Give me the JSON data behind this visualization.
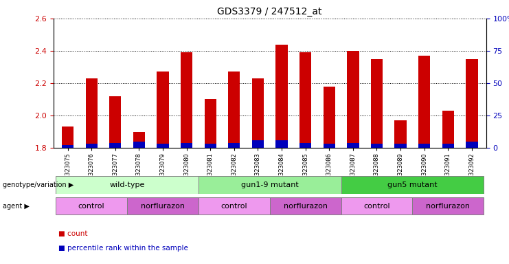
{
  "title": "GDS3379 / 247512_at",
  "samples": [
    "GSM323075",
    "GSM323076",
    "GSM323077",
    "GSM323078",
    "GSM323079",
    "GSM323080",
    "GSM323081",
    "GSM323082",
    "GSM323083",
    "GSM323084",
    "GSM323085",
    "GSM323086",
    "GSM323087",
    "GSM323088",
    "GSM323089",
    "GSM323090",
    "GSM323091",
    "GSM323092"
  ],
  "count_values": [
    1.93,
    2.23,
    2.12,
    1.9,
    2.27,
    2.39,
    2.1,
    2.27,
    2.23,
    2.44,
    2.39,
    2.18,
    2.4,
    2.35,
    1.97,
    2.37,
    2.03,
    2.35
  ],
  "percentile_values": [
    2,
    3,
    4,
    5,
    3,
    4,
    3,
    4,
    6,
    6,
    4,
    3,
    4,
    3,
    3,
    3,
    3,
    5
  ],
  "ylim_left": [
    1.8,
    2.6
  ],
  "ylim_right": [
    0,
    100
  ],
  "yticks_left": [
    1.8,
    2.0,
    2.2,
    2.4,
    2.6
  ],
  "yticks_right": [
    0,
    25,
    50,
    75,
    100
  ],
  "ytick_labels_right": [
    "0",
    "25",
    "50",
    "75",
    "100%"
  ],
  "bar_width": 0.5,
  "count_color": "#cc0000",
  "percentile_color": "#0000bb",
  "groups": [
    {
      "label": "wild-type",
      "start": 0,
      "end": 5,
      "color": "#ccffcc"
    },
    {
      "label": "gun1-9 mutant",
      "start": 6,
      "end": 11,
      "color": "#99ee99"
    },
    {
      "label": "gun5 mutant",
      "start": 12,
      "end": 17,
      "color": "#44cc44"
    }
  ],
  "agents": [
    {
      "label": "control",
      "start": 0,
      "end": 2,
      "color": "#ee99ee"
    },
    {
      "label": "norflurazon",
      "start": 3,
      "end": 5,
      "color": "#cc66cc"
    },
    {
      "label": "control",
      "start": 6,
      "end": 8,
      "color": "#ee99ee"
    },
    {
      "label": "norflurazon",
      "start": 9,
      "end": 11,
      "color": "#cc66cc"
    },
    {
      "label": "control",
      "start": 12,
      "end": 14,
      "color": "#ee99ee"
    },
    {
      "label": "norflurazon",
      "start": 15,
      "end": 17,
      "color": "#cc66cc"
    }
  ],
  "legend_items": [
    {
      "label": "count",
      "color": "#cc0000"
    },
    {
      "label": "percentile rank within the sample",
      "color": "#0000bb"
    }
  ],
  "figure_width": 7.41,
  "figure_height": 3.84,
  "background_color": "#ffffff"
}
